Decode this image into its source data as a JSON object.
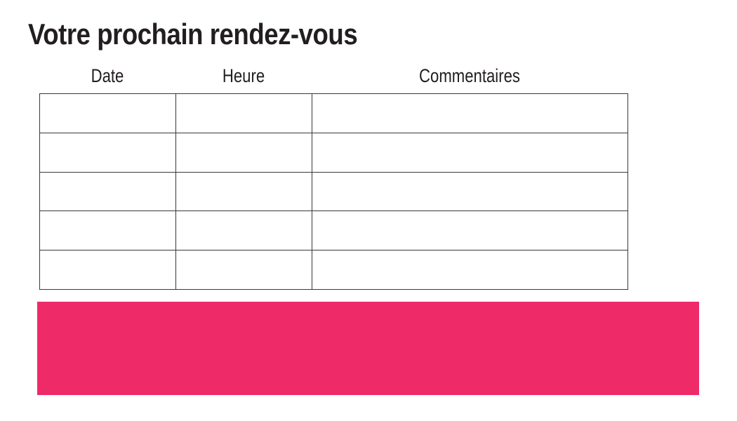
{
  "page": {
    "title": "Votre prochain rendez-vous"
  },
  "colors": {
    "background": "#ffffff",
    "text": "#221e1f",
    "table_border": "#3a3738",
    "accent_pink": "#ee2a68"
  },
  "table": {
    "columns": [
      {
        "label": "Date"
      },
      {
        "label": "Heure"
      },
      {
        "label": "Commentaires"
      }
    ],
    "rows": [
      {
        "date": "",
        "heure": "",
        "commentaires": ""
      },
      {
        "date": "",
        "heure": "",
        "commentaires": ""
      },
      {
        "date": "",
        "heure": "",
        "commentaires": ""
      },
      {
        "date": "",
        "heure": "",
        "commentaires": ""
      },
      {
        "date": "",
        "heure": "",
        "commentaires": ""
      }
    ]
  },
  "accent_block": {
    "text": ""
  }
}
